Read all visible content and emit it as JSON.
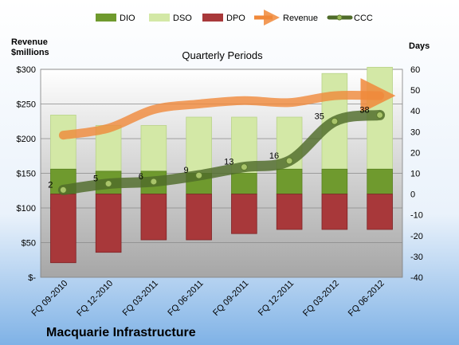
{
  "chart_data": {
    "type": "bar",
    "title": "Quarterly Periods",
    "company": "Macquarie Infrastructure",
    "y_left_label_line1": "Revenue",
    "y_left_label_line2": "$millions",
    "y_right_label": "Days",
    "y_left_ticks": [
      "$-",
      "$50",
      "$100",
      "$150",
      "$200",
      "$250",
      "$300"
    ],
    "y_right_ticks": [
      "-40",
      "-30",
      "-20",
      "-10",
      "0",
      "10",
      "20",
      "30",
      "40",
      "50",
      "60"
    ],
    "y_left_range": [
      0,
      300
    ],
    "y_right_range": [
      -40,
      60
    ],
    "categories": [
      "FQ 09-2010",
      "FQ 12-2010",
      "FQ 03-2011",
      "FQ 06-2011",
      "FQ 09-2011",
      "FQ 12-2011",
      "FQ 03-2012",
      "FQ 06-2012"
    ],
    "series": [
      {
        "name": "DIO",
        "axis": "right",
        "values": [
          12,
          11,
          11,
          10,
          10,
          12,
          12,
          12
        ]
      },
      {
        "name": "DSO",
        "axis": "right",
        "values": [
          26,
          22,
          22,
          27,
          27,
          25,
          46,
          49
        ]
      },
      {
        "name": "DPO",
        "axis": "right",
        "values": [
          -33,
          -28,
          -22,
          -22,
          -19,
          -17,
          -17,
          -17
        ]
      },
      {
        "name": "Revenue",
        "axis": "left",
        "values": [
          205,
          215,
          242,
          250,
          255,
          252,
          262,
          262
        ]
      },
      {
        "name": "CCC",
        "axis": "right",
        "values": [
          2,
          5,
          6,
          9,
          13,
          16,
          35,
          38
        ]
      }
    ],
    "ccc_labels": [
      "2",
      "5",
      "6",
      "9",
      "13",
      "16",
      "35",
      "38"
    ],
    "legend": [
      "DIO",
      "DSO",
      "DPO",
      "Revenue",
      "CCC"
    ],
    "legend_position": "top",
    "grid": true
  },
  "colors": {
    "dio": "#6f9a2e",
    "dso": "#d3e8a6",
    "dpo": "#a8383a",
    "revenue": "#f0883a",
    "ccc": "#4f6b2a"
  }
}
